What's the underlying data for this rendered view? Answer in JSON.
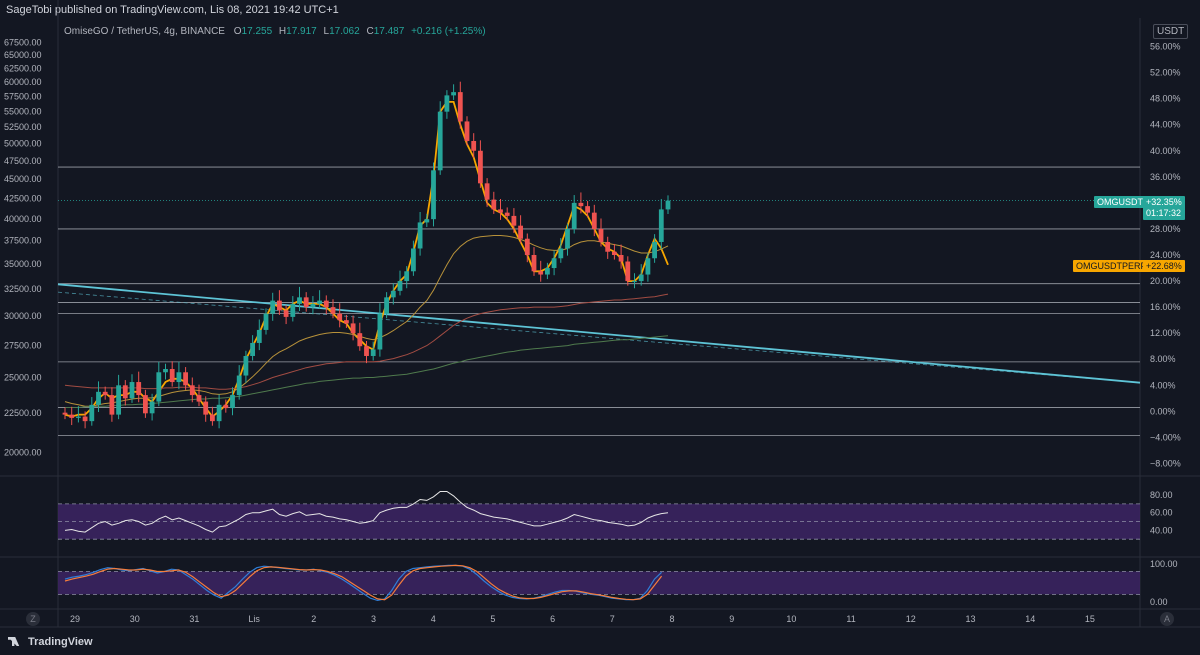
{
  "header": {
    "publisher": "SageTobi published on TradingView.com, Lis 08, 2021 19:42 UTC+1",
    "symbol": "OmiseGO / TetherUS, 4g, BINANCE",
    "ohlc": {
      "o_label": "O",
      "o": "17.255",
      "h_label": "H",
      "h": "17.917",
      "l_label": "L",
      "l": "17.062",
      "c_label": "C",
      "c": "17.487",
      "change": "+0.216 (+1.25%)"
    },
    "unit_button": "USDT"
  },
  "price_tags": {
    "omgusdt": {
      "label": "OMGUSDT",
      "value": "+32.35%",
      "timer": "01:17:32",
      "color": "#26a69a"
    },
    "omgusdtperp": {
      "label": "OMGUSDTPERP",
      "value": "+22.68%",
      "color": "#f7a600"
    }
  },
  "footer": {
    "logo": "TradingView",
    "z_button": "Z",
    "a_button": "A"
  },
  "colors": {
    "background": "#131722",
    "up": "#26a69a",
    "down": "#ef5350",
    "fast_ma": "#f7a600",
    "trendline": "#5ec4d6",
    "hline": "#c8cbd3",
    "oscillator_band": "#3b2460"
  },
  "chart_data": [
    {
      "type": "candlestick",
      "title": "",
      "xlabel": "",
      "ylabel": "",
      "log_scale": true,
      "grid": false,
      "x_ticks": [
        "29",
        "30",
        "31",
        "Lis",
        "2",
        "3",
        "4",
        "5",
        "6",
        "7",
        "8",
        "9",
        "10",
        "11",
        "12",
        "13",
        "14",
        "15"
      ],
      "y_ticks_left": [
        "67500.00",
        "65000.00",
        "62500.00",
        "60000.00",
        "57500.00",
        "55000.00",
        "52500.00",
        "50000.00",
        "47500.00",
        "45000.00",
        "42500.00",
        "40000.00",
        "37500.00",
        "35000.00",
        "32500.00",
        "30000.00",
        "27500.00",
        "25000.00",
        "22500.00",
        "20000.00"
      ],
      "y_ticks_right": [
        "56.00%",
        "52.00%",
        "48.00%",
        "44.00%",
        "40.00%",
        "36.00%",
        "32.00%",
        "28.00%",
        "24.00%",
        "20.00%",
        "16.00%",
        "12.00%",
        "8.00%",
        "4.00%",
        "0.00%",
        "−4.00%",
        "−8.00%"
      ],
      "ylim_left": [
        19000,
        68000
      ],
      "ylim_right_pct": [
        -9,
        57
      ],
      "horizontal_levels_pct": [
        37.5,
        28.0,
        19.6,
        16.7,
        15.0,
        7.6,
        0.6,
        -3.7
      ],
      "trendline_pct": [
        [
          19.5,
          4.4
        ],
        [
          -2.1,
          0.0
        ]
      ],
      "series": [
        {
          "name": "candles_pct",
          "close": [
            -0.5,
            -1.0,
            -0.8,
            -1.5,
            1.0,
            3.0,
            2.5,
            -0.5,
            4.0,
            2.0,
            4.5,
            2.5,
            -0.3,
            1.5,
            6.0,
            6.5,
            4.5,
            6.0,
            4.0,
            2.5,
            1.5,
            -0.5,
            -1.5,
            1.0,
            0.5,
            2.5,
            5.5,
            8.5,
            10.5,
            12.5,
            15.0,
            17.0,
            15.5,
            14.5,
            16.5,
            17.5,
            16.0,
            16.5,
            17.0,
            16.0,
            15.0,
            14.0,
            13.5,
            12.0,
            10.0,
            8.5,
            9.5,
            15.0,
            17.5,
            18.5,
            20.0,
            21.5,
            25.0,
            29.0,
            29.5,
            37.0,
            46.0,
            48.5,
            49.0,
            44.5,
            41.5,
            40.0,
            35.0,
            32.5,
            31.0,
            30.5,
            30.0,
            28.5,
            26.5,
            24.0,
            21.5,
            21.0,
            22.0,
            23.5,
            25.0,
            28.0,
            32.0,
            31.5,
            30.5,
            28.0,
            26.0,
            24.5,
            24.0,
            23.0,
            20.0,
            20.0,
            21.0,
            23.5,
            26.0,
            31.0,
            32.35
          ]
        },
        {
          "name": "fast_ma_pct",
          "values": [
            -0.5,
            -0.8,
            -0.5,
            -0.5,
            0.5,
            2.0,
            2.8,
            2.0,
            2.5,
            2.5,
            3.0,
            3.0,
            2.0,
            1.5,
            3.0,
            4.5,
            5.0,
            5.0,
            4.5,
            3.5,
            2.0,
            0.5,
            -0.8,
            0.0,
            1.0,
            2.5,
            5.0,
            8.0,
            10.0,
            12.0,
            14.5,
            16.5,
            16.0,
            15.5,
            16.5,
            17.0,
            16.5,
            16.5,
            16.5,
            16.0,
            15.0,
            14.0,
            13.5,
            12.0,
            11.0,
            10.0,
            9.5,
            13.5,
            16.5,
            18.5,
            20.0,
            21.0,
            24.5,
            28.5,
            29.5,
            36.0,
            46.0,
            47.5,
            47.5,
            44.0,
            41.0,
            39.0,
            35.5,
            32.0,
            31.0,
            30.5,
            29.5,
            28.0,
            26.0,
            24.0,
            21.5,
            21.5,
            22.0,
            23.5,
            25.5,
            28.5,
            31.5,
            31.0,
            30.0,
            28.0,
            26.0,
            25.0,
            24.5,
            23.5,
            20.0,
            20.0,
            21.0,
            24.0,
            26.5,
            25.0,
            22.5
          ]
        },
        {
          "name": "ma_2_pct",
          "values": [
            1.5,
            1.2,
            1.0,
            0.8,
            0.8,
            1.0,
            1.2,
            1.3,
            1.5,
            1.7,
            1.9,
            2.0,
            2.0,
            2.1,
            2.3,
            2.6,
            2.9,
            3.1,
            3.2,
            3.3,
            3.2,
            3.0,
            2.7,
            2.6,
            2.7,
            3.0,
            3.6,
            4.4,
            5.3,
            6.3,
            7.4,
            8.4,
            9.1,
            9.6,
            10.2,
            10.8,
            11.2,
            11.5,
            11.8,
            12.0,
            12.1,
            12.1,
            12.0,
            11.8,
            11.5,
            11.2,
            11.0,
            11.3,
            11.8,
            12.4,
            13.1,
            13.8,
            14.8,
            16.0,
            17.0,
            18.6,
            20.6,
            22.5,
            24.2,
            25.3,
            26.1,
            26.6,
            26.8,
            26.9,
            27.0,
            27.0,
            26.9,
            26.7,
            26.4,
            26.0,
            25.5,
            25.1,
            24.8,
            24.7,
            24.7,
            25.0,
            25.6,
            26.0,
            26.2,
            26.2,
            26.0,
            25.8,
            25.6,
            25.4,
            25.0,
            24.6,
            24.3,
            24.3,
            24.5,
            24.9,
            25.4
          ]
        },
        {
          "name": "ma_3_pct",
          "values": [
            4.0,
            3.9,
            3.8,
            3.7,
            3.6,
            3.6,
            3.6,
            3.6,
            3.6,
            3.6,
            3.6,
            3.6,
            3.5,
            3.5,
            3.5,
            3.6,
            3.6,
            3.7,
            3.7,
            3.7,
            3.6,
            3.6,
            3.5,
            3.4,
            3.4,
            3.5,
            3.6,
            3.8,
            4.1,
            4.4,
            4.8,
            5.2,
            5.5,
            5.8,
            6.1,
            6.4,
            6.7,
            6.9,
            7.1,
            7.3,
            7.4,
            7.5,
            7.6,
            7.6,
            7.6,
            7.6,
            7.6,
            7.7,
            7.9,
            8.1,
            8.4,
            8.7,
            9.1,
            9.6,
            10.1,
            10.8,
            11.6,
            12.4,
            13.2,
            13.8,
            14.3,
            14.7,
            15.0,
            15.2,
            15.4,
            15.6,
            15.7,
            15.8,
            15.9,
            15.9,
            16.0,
            16.0,
            16.0,
            16.0,
            16.1,
            16.2,
            16.4,
            16.6,
            16.7,
            16.8,
            16.9,
            17.0,
            17.1,
            17.1,
            17.2,
            17.3,
            17.4,
            17.5,
            17.6,
            17.8,
            18.0
          ]
        },
        {
          "name": "ma_4_pct",
          "values": [
            0.6,
            0.6,
            0.6,
            0.7,
            0.7,
            0.8,
            0.8,
            0.9,
            0.9,
            1.0,
            1.0,
            1.1,
            1.1,
            1.2,
            1.3,
            1.4,
            1.5,
            1.6,
            1.7,
            1.8,
            1.9,
            1.9,
            2.0,
            2.0,
            2.1,
            2.2,
            2.3,
            2.5,
            2.7,
            2.9,
            3.1,
            3.3,
            3.5,
            3.7,
            3.9,
            4.1,
            4.3,
            4.4,
            4.6,
            4.7,
            4.8,
            4.9,
            5.0,
            5.1,
            5.1,
            5.2,
            5.2,
            5.3,
            5.4,
            5.5,
            5.6,
            5.7,
            5.9,
            6.1,
            6.3,
            6.5,
            6.8,
            7.1,
            7.4,
            7.6,
            7.9,
            8.1,
            8.3,
            8.5,
            8.7,
            8.9,
            9.1,
            9.2,
            9.4,
            9.5,
            9.6,
            9.7,
            9.8,
            9.9,
            10.0,
            10.1,
            10.3,
            10.4,
            10.5,
            10.6,
            10.7,
            10.8,
            10.9,
            11.0,
            11.0,
            11.1,
            11.2,
            11.3,
            11.4,
            11.5,
            11.6
          ]
        }
      ]
    },
    {
      "type": "line",
      "title": "",
      "y_ticks": [
        "80.00",
        "60.00",
        "40.00"
      ],
      "ylim": [
        20,
        88
      ],
      "band": [
        30,
        70
      ],
      "series": [
        {
          "name": "rsi",
          "values": [
            40,
            41,
            39,
            38,
            43,
            48,
            50,
            46,
            48,
            51,
            52,
            50,
            46,
            48,
            53,
            56,
            52,
            54,
            51,
            48,
            45,
            41,
            38,
            44,
            45,
            49,
            53,
            58,
            60,
            60,
            62,
            64,
            58,
            56,
            59,
            61,
            57,
            58,
            59,
            56,
            55,
            53,
            52,
            50,
            48,
            49,
            51,
            60,
            63,
            65,
            66,
            66,
            70,
            75,
            74,
            78,
            84,
            84,
            79,
            72,
            66,
            63,
            59,
            57,
            55,
            54,
            53,
            51,
            49,
            47,
            45,
            45,
            47,
            49,
            51,
            54,
            58,
            56,
            54,
            52,
            51,
            49,
            48,
            47,
            45,
            46,
            49,
            54,
            57,
            59,
            60
          ]
        }
      ]
    },
    {
      "type": "line",
      "title": "",
      "y_ticks": [
        "100.00",
        "0.00"
      ],
      "ylim": [
        -8,
        105
      ],
      "band": [
        20,
        80
      ],
      "series": [
        {
          "name": "stoch_k",
          "values": [
            60,
            65,
            68,
            72,
            78,
            85,
            90,
            88,
            84,
            82,
            85,
            88,
            82,
            76,
            80,
            86,
            84,
            72,
            60,
            45,
            30,
            18,
            10,
            25,
            40,
            60,
            78,
            90,
            94,
            92,
            90,
            88,
            86,
            84,
            84,
            86,
            82,
            78,
            70,
            60,
            48,
            35,
            22,
            10,
            4,
            8,
            30,
            60,
            80,
            88,
            90,
            92,
            94,
            95,
            96,
            96,
            94,
            86,
            72,
            55,
            40,
            28,
            18,
            12,
            9,
            8,
            10,
            14,
            20,
            26,
            30,
            30,
            28,
            24,
            20,
            18,
            14,
            10,
            8,
            6,
            6,
            10,
            30,
            60,
            78
          ]
        },
        {
          "name": "stoch_d",
          "values": [
            55,
            60,
            64,
            68,
            73,
            80,
            86,
            88,
            86,
            84,
            84,
            86,
            84,
            80,
            80,
            82,
            84,
            78,
            66,
            52,
            38,
            24,
            14,
            18,
            30,
            48,
            66,
            82,
            90,
            92,
            91,
            89,
            87,
            85,
            84,
            85,
            84,
            80,
            74,
            66,
            54,
            42,
            30,
            18,
            8,
            6,
            18,
            44,
            68,
            82,
            88,
            90,
            92,
            94,
            95,
            96,
            95,
            90,
            80,
            64,
            48,
            34,
            24,
            16,
            11,
            9,
            9,
            12,
            17,
            22,
            27,
            29,
            29,
            26,
            22,
            19,
            16,
            12,
            9,
            7,
            6,
            8,
            20,
            44,
            68
          ]
        }
      ]
    }
  ]
}
